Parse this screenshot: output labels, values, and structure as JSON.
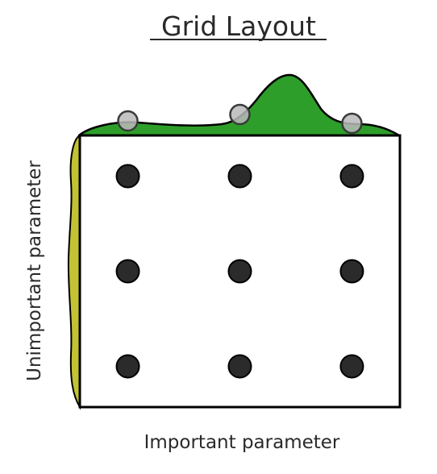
{
  "title": "Grid Layout",
  "x_label": "Important parameter",
  "y_label": "Unimportant parameter",
  "grid": {
    "x_positions": [
      0.15,
      0.5,
      0.85
    ],
    "y_positions": [
      0.15,
      0.5,
      0.85
    ]
  },
  "colors": {
    "x_density": "#2e9e2a",
    "y_density": "#c2c234",
    "point": "#2b2b2b",
    "projection_marker": "#b9b9b9",
    "outline": "#000000"
  }
}
